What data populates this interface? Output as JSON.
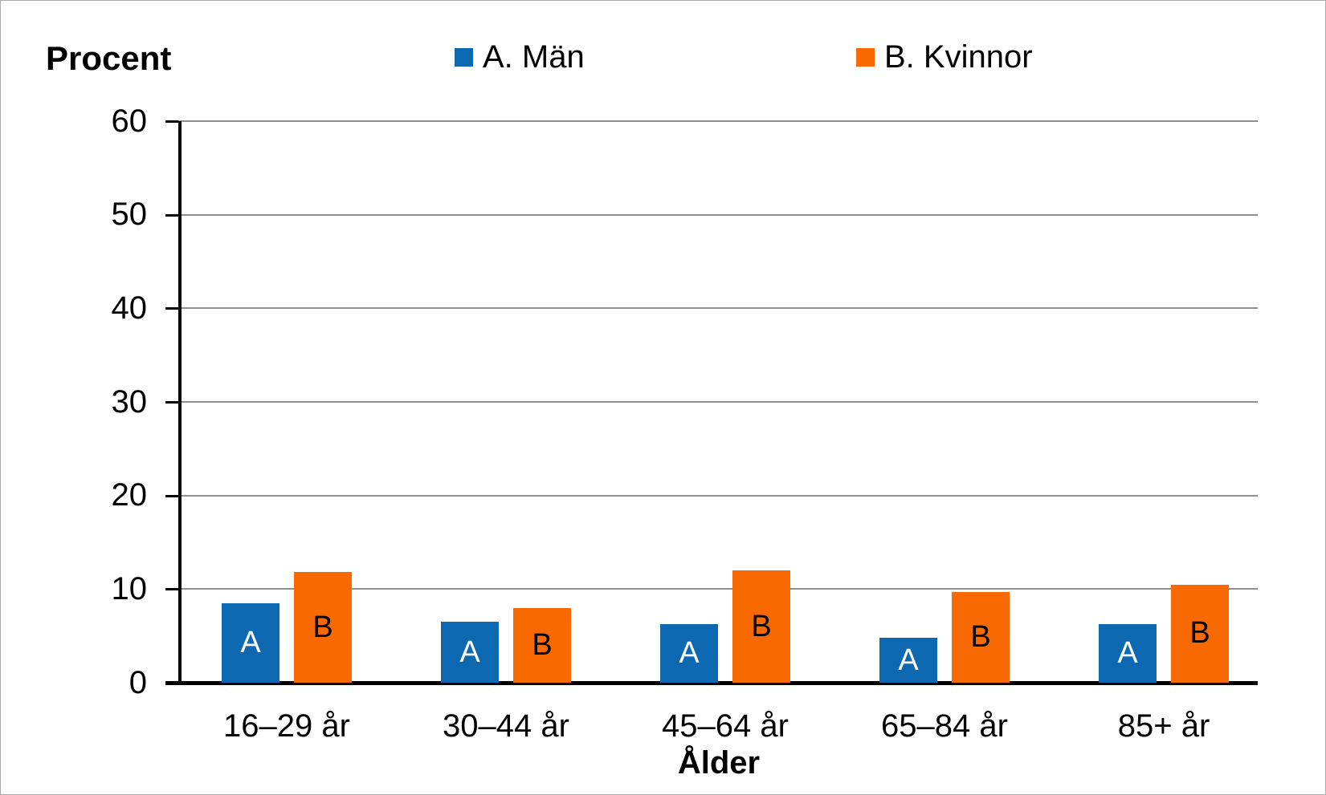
{
  "chart_data": {
    "type": "bar",
    "title": "Procent",
    "ylabel": "Procent",
    "xlabel": "Ålder",
    "categories": [
      "16–29 år",
      "30–44 år",
      "45–64 år",
      "65–84 år",
      "85+ år"
    ],
    "series": [
      {
        "name": "A. Män",
        "bar_letter": "A",
        "color": "#0C69B1",
        "bar_label_color": "#FFFFFF",
        "values": [
          8.5,
          6.5,
          6.3,
          4.8,
          6.3
        ]
      },
      {
        "name": "B. Kvinnor",
        "bar_letter": "B",
        "color": "#F96902",
        "bar_label_color": "#000000",
        "values": [
          11.8,
          8.0,
          12.0,
          9.7,
          10.5
        ]
      }
    ],
    "ylim": [
      0,
      60
    ],
    "ytick_step": 10,
    "ytick_labels": [
      "0",
      "10",
      "20",
      "30",
      "40",
      "50",
      "60"
    ],
    "grid": "horizontal",
    "gridline_color": "#8f8f8f",
    "legend_position": "top"
  }
}
